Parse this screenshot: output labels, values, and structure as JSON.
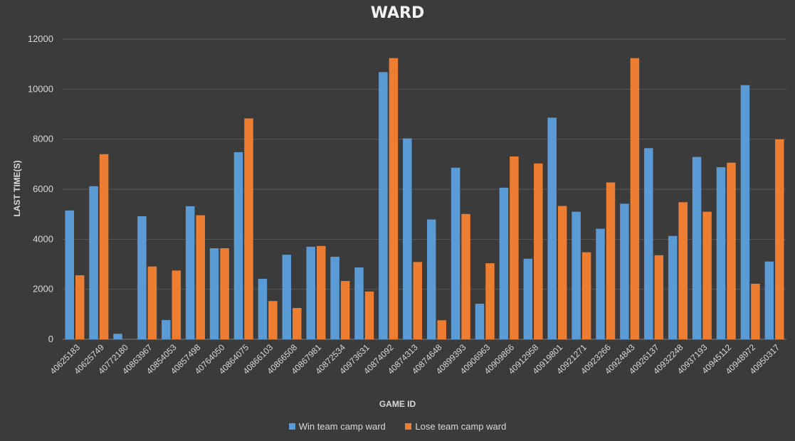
{
  "colors": {
    "win": "#5b9bd5",
    "lose": "#ed7d31",
    "grid": "#595959",
    "text": "#d9d9d9"
  },
  "legend": {
    "win": "Win team camp ward",
    "lose": "Lose team camp ward"
  },
  "chart_data": {
    "type": "bar",
    "title": "WARD",
    "xlabel": "GAME ID",
    "ylabel": "LAST TIME(S)",
    "ylim": [
      0,
      12000
    ],
    "yticks": [
      0,
      2000,
      4000,
      6000,
      8000,
      10000,
      12000
    ],
    "grid": true,
    "legend_position": "bottom",
    "categories": [
      "40625183",
      "40625749",
      "40772180",
      "40863967",
      "40854053",
      "40857498",
      "40764050",
      "40864075",
      "40866103",
      "40866508",
      "40867981",
      "40872534",
      "40973631",
      "40874092",
      "40874313",
      "40874648",
      "40899393",
      "40906963",
      "40909866",
      "40912958",
      "40919801",
      "40921271",
      "40923266",
      "40924843",
      "40926137",
      "40932248",
      "40937193",
      "40945112",
      "40948972",
      "40950317"
    ],
    "series": [
      {
        "name": "Win team camp ward",
        "values": [
          5150,
          6120,
          220,
          4920,
          770,
          5320,
          3640,
          7480,
          2420,
          3380,
          3700,
          3300,
          2870,
          10680,
          8030,
          4790,
          6860,
          1420,
          6060,
          3220,
          8860,
          5100,
          4420,
          5420,
          7640,
          4130,
          7290,
          6880,
          10160,
          3110
        ]
      },
      {
        "name": "Lose team camp ward",
        "values": [
          2560,
          7400,
          0,
          2910,
          2750,
          4960,
          3640,
          8830,
          1530,
          1250,
          3730,
          2330,
          1910,
          11240,
          3090,
          760,
          5010,
          3040,
          7310,
          7030,
          5330,
          3480,
          6270,
          11240,
          3360,
          5480,
          5100,
          7060,
          2220,
          7990
        ]
      }
    ]
  }
}
